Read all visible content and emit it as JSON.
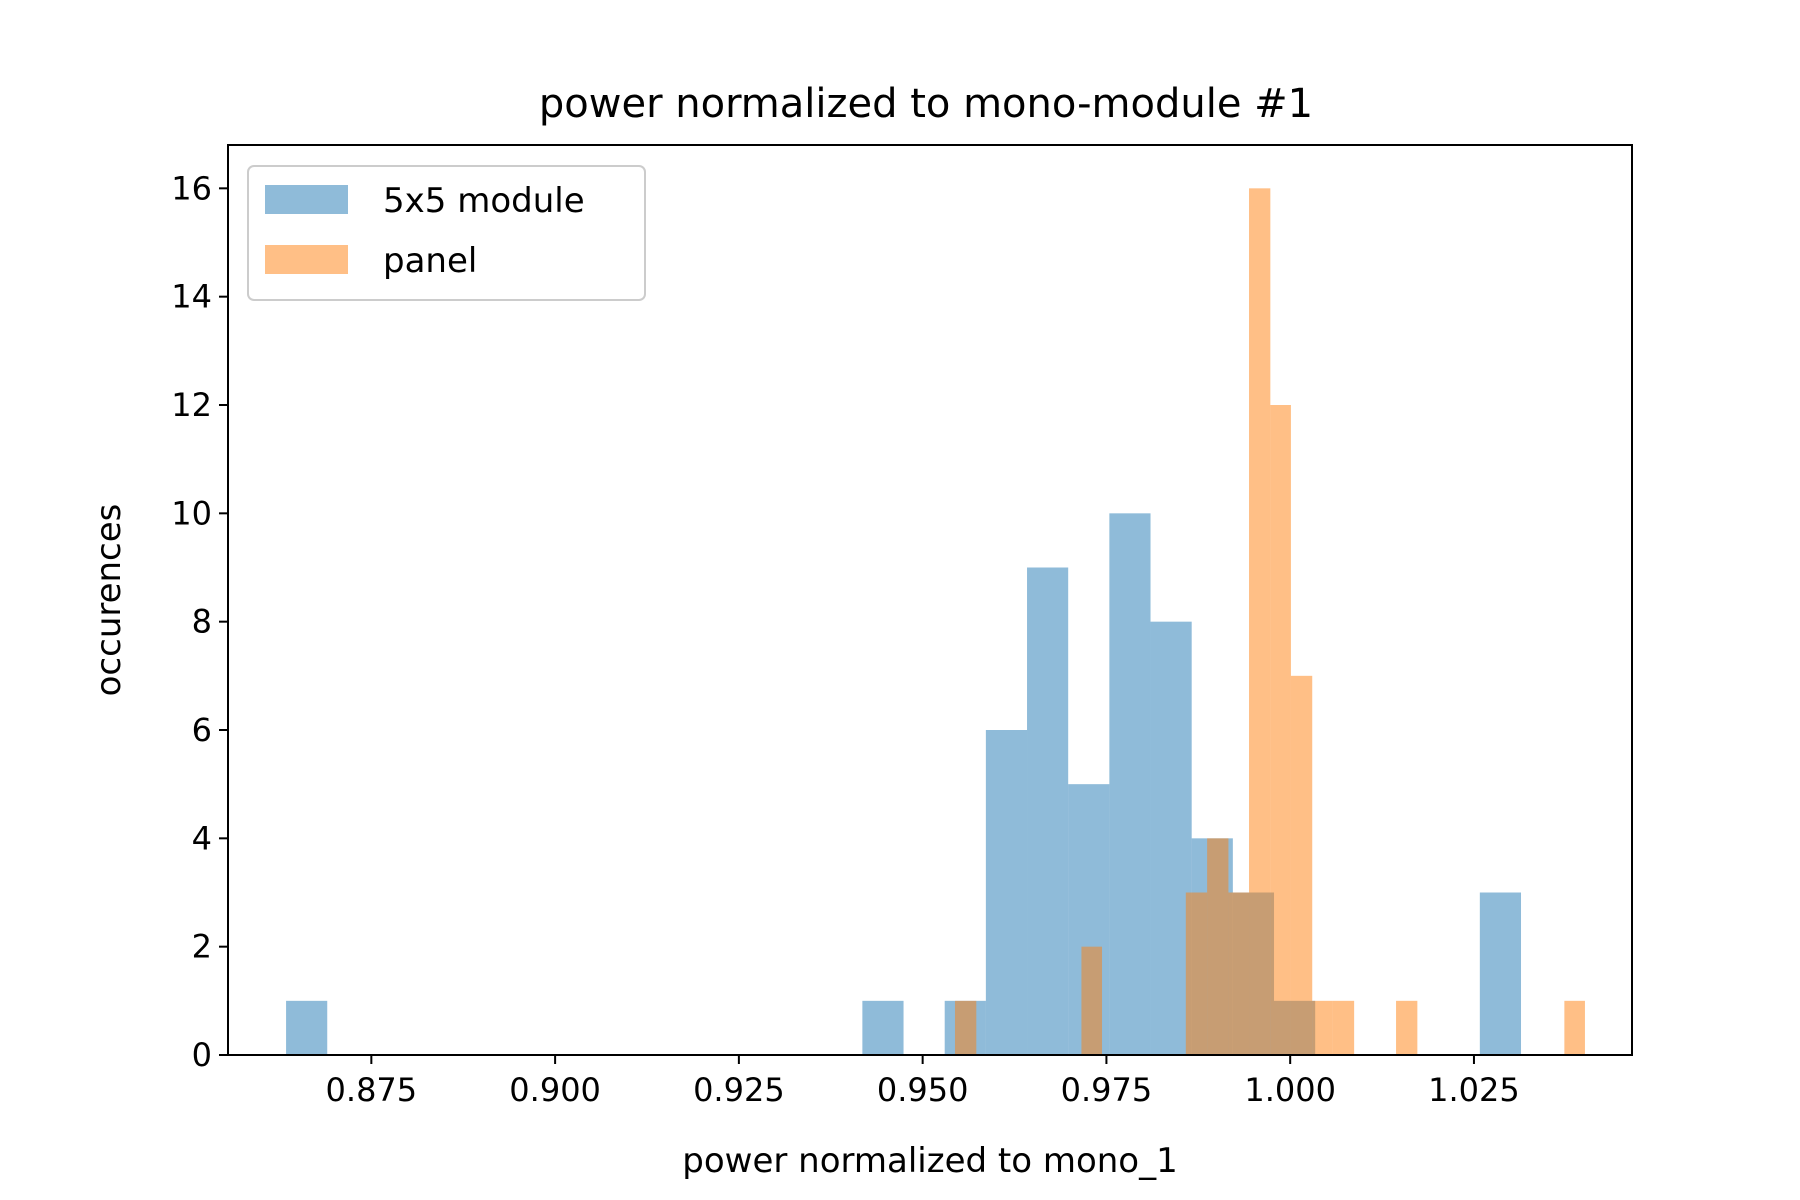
{
  "chart_data": {
    "type": "bar",
    "title": "power normalized to mono-module #1",
    "xlabel": "power normalized to mono_1",
    "ylabel": "occurences",
    "xlim": [
      0.8555,
      1.0465
    ],
    "ylim": [
      0,
      16.8
    ],
    "xticks": [
      0.875,
      0.9,
      0.925,
      0.95,
      0.975,
      1.0,
      1.025
    ],
    "xtick_labels": [
      "0.875",
      "0.900",
      "0.925",
      "0.950",
      "0.975",
      "1.000",
      "1.025"
    ],
    "yticks": [
      0,
      2,
      4,
      6,
      8,
      10,
      12,
      14,
      16
    ],
    "ytick_labels": [
      "0",
      "2",
      "4",
      "6",
      "8",
      "10",
      "12",
      "14",
      "16"
    ],
    "legend_position": "top-left",
    "grid": false,
    "series": [
      {
        "name": "5x5 module",
        "color": "#1f77b4",
        "alpha": 0.5,
        "bin_edges": [
          0.8634,
          0.869,
          0.8746,
          0.8802,
          0.8858,
          0.8914,
          0.897,
          0.9026,
          0.9082,
          0.9138,
          0.9194,
          0.925,
          0.9306,
          0.9362,
          0.9418,
          0.9474,
          0.953,
          0.9586,
          0.9642,
          0.9698,
          0.9754,
          0.981,
          0.9866,
          0.9922,
          0.9978,
          1.0034,
          1.009,
          1.0146,
          1.0202,
          1.0258,
          1.0314
        ],
        "counts": [
          1,
          0,
          0,
          0,
          0,
          0,
          0,
          0,
          0,
          0,
          0,
          0,
          0,
          0,
          1,
          0,
          1,
          6,
          9,
          5,
          10,
          8,
          4,
          3,
          1,
          0,
          0,
          0,
          0,
          3
        ]
      },
      {
        "name": "panel",
        "color": "#ff7f0e",
        "alpha": 0.5,
        "bin_edges": [
          0.9544,
          0.9573,
          0.9601,
          0.963,
          0.9658,
          0.9687,
          0.9716,
          0.9744,
          0.9773,
          0.9801,
          0.983,
          0.9858,
          0.9887,
          0.9916,
          0.9944,
          0.9973,
          1.0001,
          1.003,
          1.0058,
          1.0087,
          1.0116,
          1.0144,
          1.0173,
          1.0201,
          1.023,
          1.0258,
          1.0287,
          1.0316,
          1.0344,
          1.0373,
          1.0401
        ],
        "counts": [
          1,
          0,
          0,
          0,
          0,
          0,
          2,
          0,
          0,
          0,
          0,
          3,
          4,
          3,
          16,
          12,
          7,
          1,
          1,
          0,
          0,
          1,
          0,
          0,
          0,
          0,
          0,
          0,
          0,
          1
        ]
      }
    ]
  }
}
